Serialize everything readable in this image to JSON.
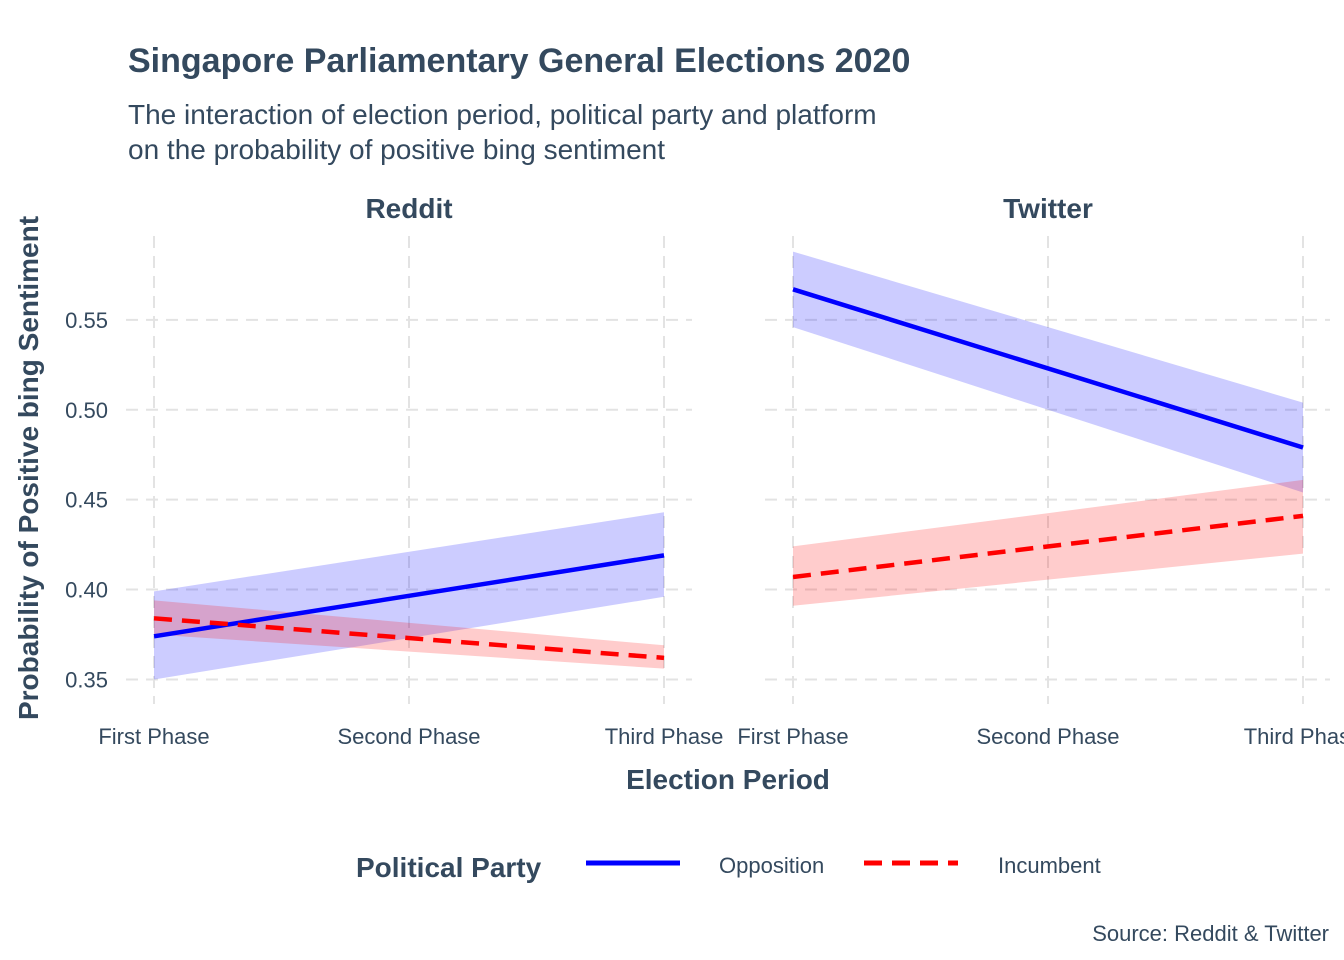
{
  "chart_data": {
    "type": "line",
    "title": "Singapore Parliamentary General Elections 2020",
    "subtitle": [
      "The interaction of election period, political party and platform",
      "on the probability of positive bing sentiment"
    ],
    "xlabel": "Election Period",
    "ylabel": "Probability of Positive bing Sentiment",
    "caption": "Source: Reddit & Twitter",
    "categories": [
      "First Phase",
      "Second Phase",
      "Third Phase"
    ],
    "y_ticks": [
      "0.35",
      "0.40",
      "0.45",
      "0.50",
      "0.55"
    ],
    "ylim": [
      0.333,
      0.6
    ],
    "grid": true,
    "legend": {
      "title": "Political Party",
      "position": "bottom",
      "entries": [
        {
          "name": "Opposition",
          "color": "#0000ff",
          "linetype": "solid"
        },
        {
          "name": "Incumbent",
          "color": "#ff0000",
          "linetype": "dashed"
        }
      ]
    },
    "panels": [
      {
        "name": "Reddit",
        "series": [
          {
            "name": "Opposition",
            "color": "#0000ff",
            "fill": "#0000ff",
            "linetype": "solid",
            "x": [
              0,
              2
            ],
            "values": [
              0.374,
              0.419
            ],
            "lower": [
              0.35,
              0.396
            ],
            "upper": [
              0.399,
              0.443
            ]
          },
          {
            "name": "Incumbent",
            "color": "#ff0000",
            "fill": "#ff0000",
            "linetype": "dashed",
            "x": [
              0,
              2
            ],
            "values": [
              0.384,
              0.362
            ],
            "lower": [
              0.375,
              0.356
            ],
            "upper": [
              0.394,
              0.369
            ]
          }
        ]
      },
      {
        "name": "Twitter",
        "series": [
          {
            "name": "Opposition",
            "color": "#0000ff",
            "fill": "#0000ff",
            "linetype": "solid",
            "x": [
              0,
              2
            ],
            "values": [
              0.567,
              0.479
            ],
            "lower": [
              0.546,
              0.454
            ],
            "upper": [
              0.588,
              0.504
            ]
          },
          {
            "name": "Incumbent",
            "color": "#ff0000",
            "fill": "#ff0000",
            "linetype": "dashed",
            "x": [
              0,
              2
            ],
            "values": [
              0.407,
              0.441
            ],
            "lower": [
              0.391,
              0.42
            ],
            "upper": [
              0.424,
              0.461
            ]
          }
        ]
      }
    ]
  }
}
